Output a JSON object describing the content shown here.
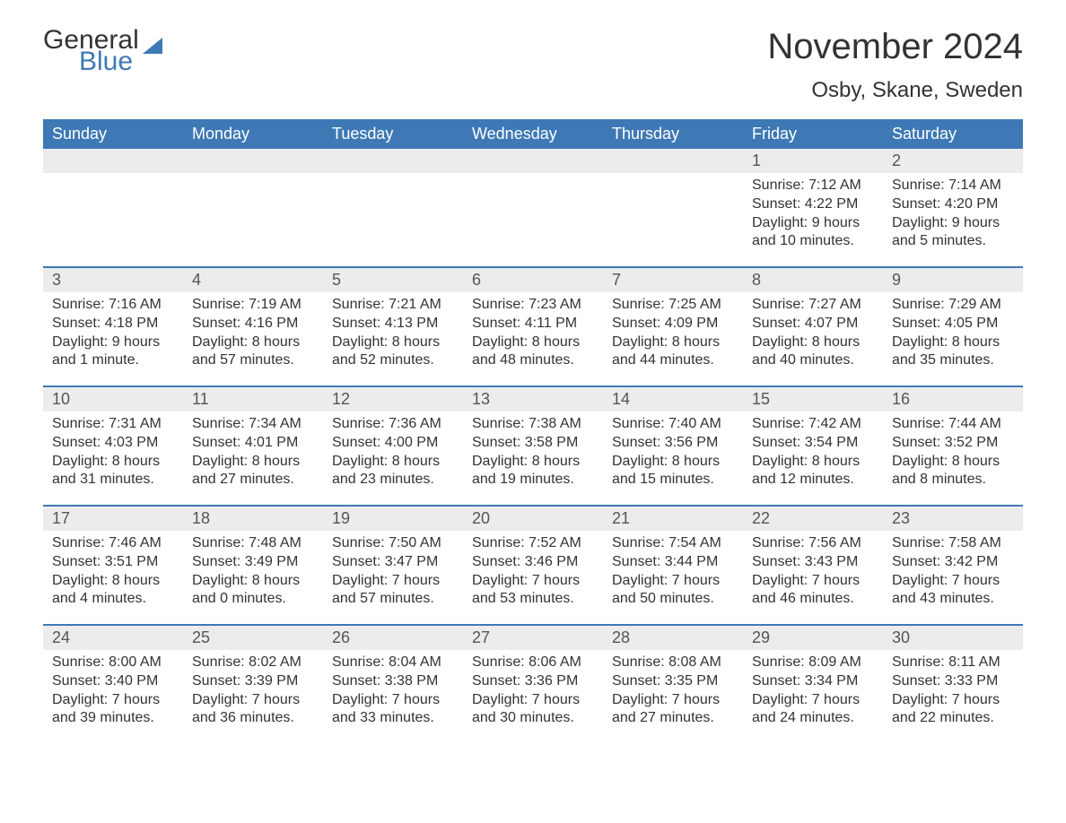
{
  "brand": {
    "word1": "General",
    "word2": "Blue"
  },
  "title": "November 2024",
  "location": "Osby, Skane, Sweden",
  "colors": {
    "header_bg": "#3e79b5",
    "header_text": "#ffffff",
    "daynum_bg": "#ececec",
    "week_border": "#3e79b5",
    "body_text": "#333333",
    "background": "#ffffff"
  },
  "weekdays": [
    "Sunday",
    "Monday",
    "Tuesday",
    "Wednesday",
    "Thursday",
    "Friday",
    "Saturday"
  ],
  "weeks": [
    {
      "days": [
        {
          "n": "",
          "sunrise": "",
          "sunset": "",
          "daylight": ""
        },
        {
          "n": "",
          "sunrise": "",
          "sunset": "",
          "daylight": ""
        },
        {
          "n": "",
          "sunrise": "",
          "sunset": "",
          "daylight": ""
        },
        {
          "n": "",
          "sunrise": "",
          "sunset": "",
          "daylight": ""
        },
        {
          "n": "",
          "sunrise": "",
          "sunset": "",
          "daylight": ""
        },
        {
          "n": "1",
          "sunrise": "Sunrise: 7:12 AM",
          "sunset": "Sunset: 4:22 PM",
          "daylight": "Daylight: 9 hours and 10 minutes."
        },
        {
          "n": "2",
          "sunrise": "Sunrise: 7:14 AM",
          "sunset": "Sunset: 4:20 PM",
          "daylight": "Daylight: 9 hours and 5 minutes."
        }
      ]
    },
    {
      "days": [
        {
          "n": "3",
          "sunrise": "Sunrise: 7:16 AM",
          "sunset": "Sunset: 4:18 PM",
          "daylight": "Daylight: 9 hours and 1 minute."
        },
        {
          "n": "4",
          "sunrise": "Sunrise: 7:19 AM",
          "sunset": "Sunset: 4:16 PM",
          "daylight": "Daylight: 8 hours and 57 minutes."
        },
        {
          "n": "5",
          "sunrise": "Sunrise: 7:21 AM",
          "sunset": "Sunset: 4:13 PM",
          "daylight": "Daylight: 8 hours and 52 minutes."
        },
        {
          "n": "6",
          "sunrise": "Sunrise: 7:23 AM",
          "sunset": "Sunset: 4:11 PM",
          "daylight": "Daylight: 8 hours and 48 minutes."
        },
        {
          "n": "7",
          "sunrise": "Sunrise: 7:25 AM",
          "sunset": "Sunset: 4:09 PM",
          "daylight": "Daylight: 8 hours and 44 minutes."
        },
        {
          "n": "8",
          "sunrise": "Sunrise: 7:27 AM",
          "sunset": "Sunset: 4:07 PM",
          "daylight": "Daylight: 8 hours and 40 minutes."
        },
        {
          "n": "9",
          "sunrise": "Sunrise: 7:29 AM",
          "sunset": "Sunset: 4:05 PM",
          "daylight": "Daylight: 8 hours and 35 minutes."
        }
      ]
    },
    {
      "days": [
        {
          "n": "10",
          "sunrise": "Sunrise: 7:31 AM",
          "sunset": "Sunset: 4:03 PM",
          "daylight": "Daylight: 8 hours and 31 minutes."
        },
        {
          "n": "11",
          "sunrise": "Sunrise: 7:34 AM",
          "sunset": "Sunset: 4:01 PM",
          "daylight": "Daylight: 8 hours and 27 minutes."
        },
        {
          "n": "12",
          "sunrise": "Sunrise: 7:36 AM",
          "sunset": "Sunset: 4:00 PM",
          "daylight": "Daylight: 8 hours and 23 minutes."
        },
        {
          "n": "13",
          "sunrise": "Sunrise: 7:38 AM",
          "sunset": "Sunset: 3:58 PM",
          "daylight": "Daylight: 8 hours and 19 minutes."
        },
        {
          "n": "14",
          "sunrise": "Sunrise: 7:40 AM",
          "sunset": "Sunset: 3:56 PM",
          "daylight": "Daylight: 8 hours and 15 minutes."
        },
        {
          "n": "15",
          "sunrise": "Sunrise: 7:42 AM",
          "sunset": "Sunset: 3:54 PM",
          "daylight": "Daylight: 8 hours and 12 minutes."
        },
        {
          "n": "16",
          "sunrise": "Sunrise: 7:44 AM",
          "sunset": "Sunset: 3:52 PM",
          "daylight": "Daylight: 8 hours and 8 minutes."
        }
      ]
    },
    {
      "days": [
        {
          "n": "17",
          "sunrise": "Sunrise: 7:46 AM",
          "sunset": "Sunset: 3:51 PM",
          "daylight": "Daylight: 8 hours and 4 minutes."
        },
        {
          "n": "18",
          "sunrise": "Sunrise: 7:48 AM",
          "sunset": "Sunset: 3:49 PM",
          "daylight": "Daylight: 8 hours and 0 minutes."
        },
        {
          "n": "19",
          "sunrise": "Sunrise: 7:50 AM",
          "sunset": "Sunset: 3:47 PM",
          "daylight": "Daylight: 7 hours and 57 minutes."
        },
        {
          "n": "20",
          "sunrise": "Sunrise: 7:52 AM",
          "sunset": "Sunset: 3:46 PM",
          "daylight": "Daylight: 7 hours and 53 minutes."
        },
        {
          "n": "21",
          "sunrise": "Sunrise: 7:54 AM",
          "sunset": "Sunset: 3:44 PM",
          "daylight": "Daylight: 7 hours and 50 minutes."
        },
        {
          "n": "22",
          "sunrise": "Sunrise: 7:56 AM",
          "sunset": "Sunset: 3:43 PM",
          "daylight": "Daylight: 7 hours and 46 minutes."
        },
        {
          "n": "23",
          "sunrise": "Sunrise: 7:58 AM",
          "sunset": "Sunset: 3:42 PM",
          "daylight": "Daylight: 7 hours and 43 minutes."
        }
      ]
    },
    {
      "days": [
        {
          "n": "24",
          "sunrise": "Sunrise: 8:00 AM",
          "sunset": "Sunset: 3:40 PM",
          "daylight": "Daylight: 7 hours and 39 minutes."
        },
        {
          "n": "25",
          "sunrise": "Sunrise: 8:02 AM",
          "sunset": "Sunset: 3:39 PM",
          "daylight": "Daylight: 7 hours and 36 minutes."
        },
        {
          "n": "26",
          "sunrise": "Sunrise: 8:04 AM",
          "sunset": "Sunset: 3:38 PM",
          "daylight": "Daylight: 7 hours and 33 minutes."
        },
        {
          "n": "27",
          "sunrise": "Sunrise: 8:06 AM",
          "sunset": "Sunset: 3:36 PM",
          "daylight": "Daylight: 7 hours and 30 minutes."
        },
        {
          "n": "28",
          "sunrise": "Sunrise: 8:08 AM",
          "sunset": "Sunset: 3:35 PM",
          "daylight": "Daylight: 7 hours and 27 minutes."
        },
        {
          "n": "29",
          "sunrise": "Sunrise: 8:09 AM",
          "sunset": "Sunset: 3:34 PM",
          "daylight": "Daylight: 7 hours and 24 minutes."
        },
        {
          "n": "30",
          "sunrise": "Sunrise: 8:11 AM",
          "sunset": "Sunset: 3:33 PM",
          "daylight": "Daylight: 7 hours and 22 minutes."
        }
      ]
    }
  ]
}
